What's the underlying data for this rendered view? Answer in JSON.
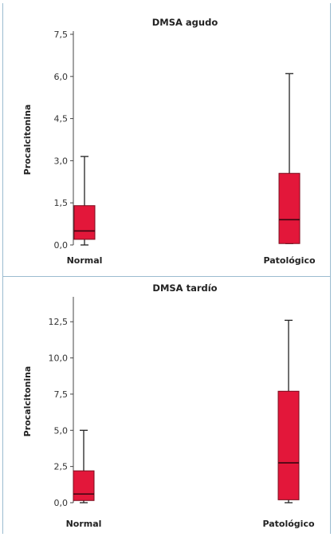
{
  "colors": {
    "box_fill": "#e3173a",
    "box_stroke": "#7a0d1d",
    "frame": "#9bbcd0",
    "axis": "#444444"
  },
  "chart_data": [
    {
      "type": "box",
      "title": "DMSA agudo",
      "ylabel": "Procalcitonina",
      "xlabel": "",
      "ylim": [
        0,
        7.5
      ],
      "yticks": [
        "0,0",
        "1,5",
        "3,0",
        "4,5",
        "6,0",
        "7,5"
      ],
      "ytick_values": [
        0,
        1.5,
        3.0,
        4.5,
        6.0,
        7.5
      ],
      "categories": [
        "Normal",
        "Patológico"
      ],
      "boxes": [
        {
          "min": 0.0,
          "q1": 0.2,
          "median": 0.5,
          "q3": 1.4,
          "max": 3.15
        },
        {
          "min": 0.05,
          "q1": 0.05,
          "median": 0.9,
          "q3": 2.55,
          "max": 6.1
        }
      ]
    },
    {
      "type": "box",
      "title": "DMSA tardío",
      "ylabel": "Procalcitonina",
      "xlabel": "",
      "ylim": [
        0,
        14
      ],
      "yticks": [
        "0,0",
        "2,5",
        "5,0",
        "7,5",
        "10,0",
        "12,5"
      ],
      "ytick_values": [
        0,
        2.5,
        5.0,
        7.5,
        10.0,
        12.5
      ],
      "categories": [
        "Normal",
        "Patológico"
      ],
      "boxes": [
        {
          "min": 0.0,
          "q1": 0.15,
          "median": 0.6,
          "q3": 2.2,
          "max": 5.0
        },
        {
          "min": 0.0,
          "q1": 0.2,
          "median": 2.75,
          "q3": 7.7,
          "max": 12.6
        }
      ]
    }
  ]
}
